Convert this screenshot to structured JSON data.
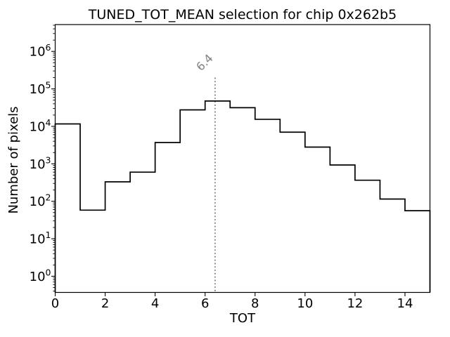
{
  "chart_data": {
    "type": "step-histogram",
    "title": "TUNED_TOT_MEAN selection for chip 0x262b5",
    "xlabel": "TOT",
    "ylabel": "Number of pixels",
    "x_scale": "linear",
    "y_scale": "log",
    "xlim": [
      0,
      15
    ],
    "ylim": [
      0.37,
      5200000
    ],
    "bin_edges": [
      0,
      1,
      2,
      3,
      4,
      5,
      6,
      7,
      8,
      9,
      10,
      11,
      12,
      13,
      14,
      15
    ],
    "counts": [
      11600,
      58,
      330,
      600,
      3700,
      27500,
      47500,
      31500,
      15400,
      7000,
      2800,
      930,
      365,
      115,
      56
    ],
    "x_ticks": [
      0,
      2,
      4,
      6,
      8,
      10,
      12,
      14
    ],
    "x_tick_labels": [
      "0",
      "2",
      "4",
      "6",
      "8",
      "10",
      "12",
      "14"
    ],
    "y_tick_exponents": [
      0,
      1,
      2,
      3,
      4,
      5,
      6
    ],
    "y_tick_base": "10",
    "grid": "off",
    "legend": "none",
    "line_color": "#000000",
    "background_color": "#ffffff",
    "annotation": {
      "x": 6.4,
      "label": "6.4",
      "color": "#7f7f7f",
      "line_style": "dotted",
      "top_value": 200000
    }
  }
}
